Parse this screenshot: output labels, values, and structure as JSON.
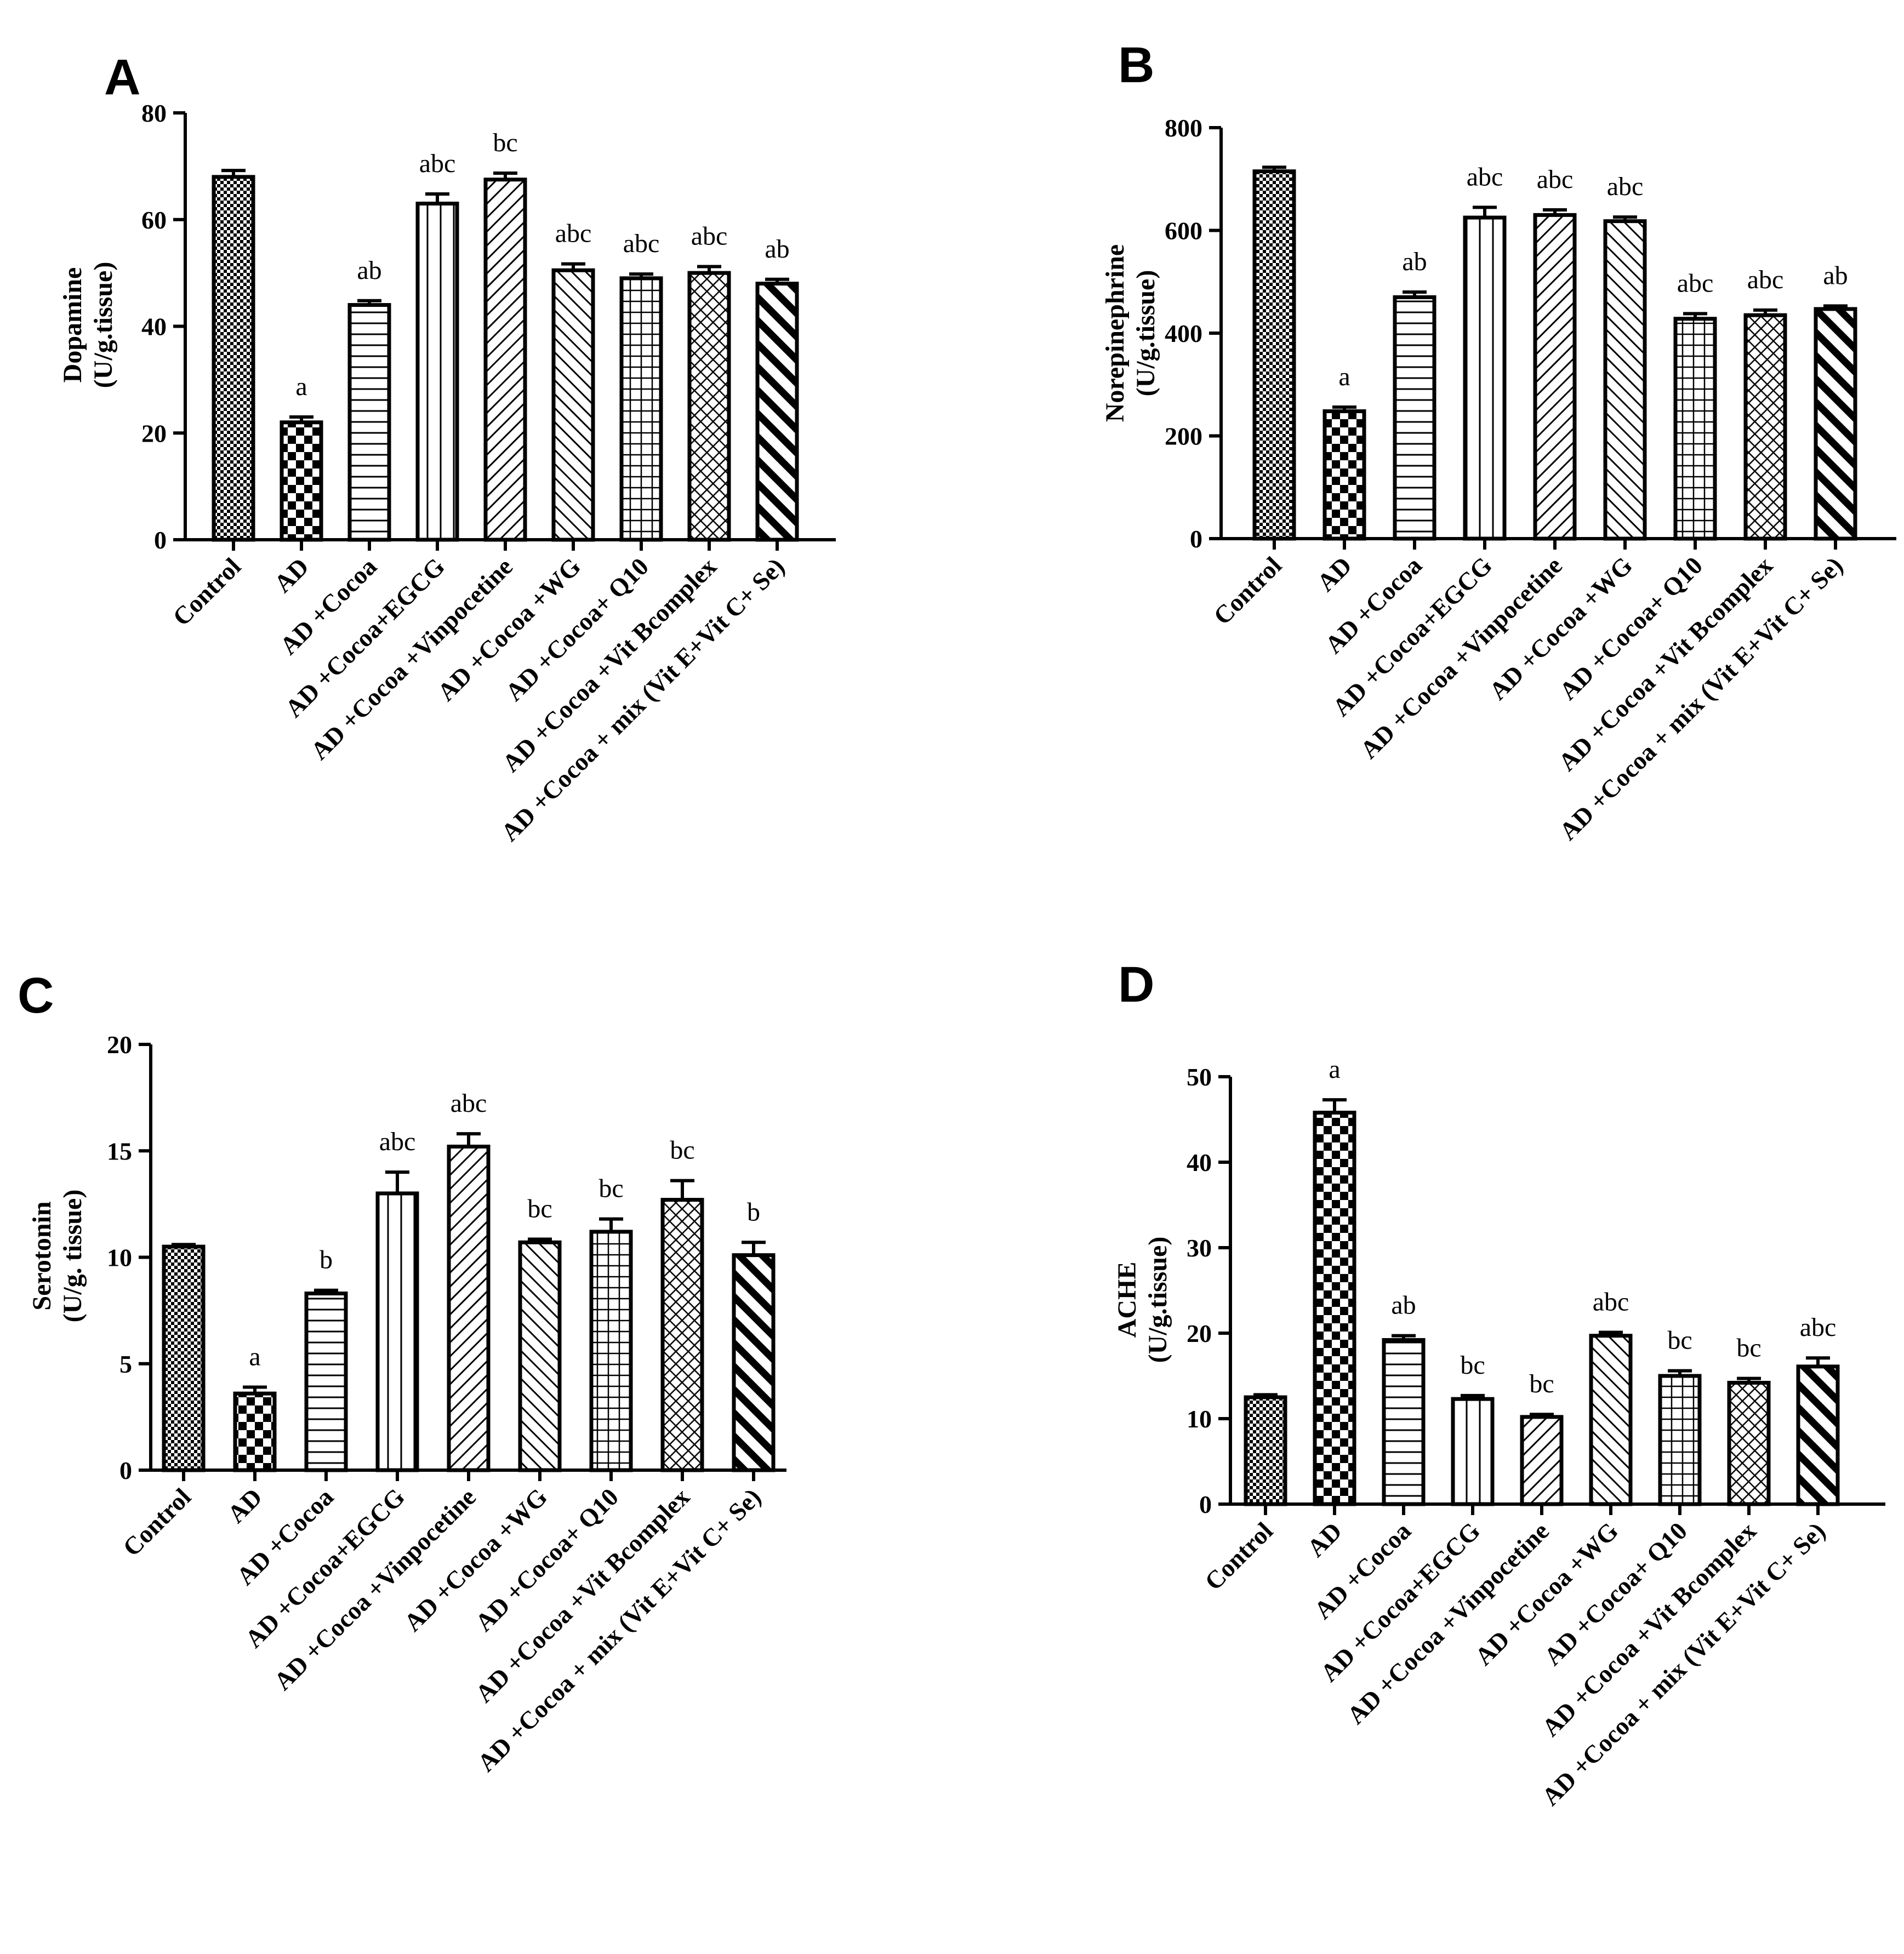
{
  "figure": {
    "categories": [
      "Control",
      "AD",
      "AD +Cocoa",
      "AD +Cocoa+EGCG",
      "AD +Cocoa +Vinpocetine",
      "AD +Cocoa +WG",
      "AD +Cocoa+ Q10",
      "AD +Cocoa +Vit Bcomplex",
      "AD +Cocoa + mix (Vit E+Vit C+ Se)"
    ],
    "fill_patterns": [
      "checker-fine",
      "checker-coarse",
      "horizontal",
      "vertical",
      "diag-up",
      "diag-down",
      "grid",
      "diamond",
      "diag-down-bold"
    ]
  },
  "chart_data": [
    {
      "type": "bar",
      "panel": "A",
      "ylabel": [
        "Dopamine",
        "(U/g.tissue)"
      ],
      "ylim": [
        0,
        80
      ],
      "yticks": [
        0,
        20,
        40,
        60,
        80
      ],
      "values": [
        68,
        22,
        44,
        63,
        67.5,
        50.5,
        49,
        50,
        48
      ],
      "errors": [
        1.2,
        1.0,
        0.8,
        1.8,
        1.2,
        1.2,
        0.8,
        1.2,
        0.8
      ],
      "significance": [
        "",
        "a",
        "ab",
        "abc",
        "bc",
        "abc",
        "abc",
        "abc",
        "ab"
      ]
    },
    {
      "type": "bar",
      "panel": "B",
      "ylabel": [
        "Norepinephrine",
        "(U/g.tissue)"
      ],
      "ylim": [
        0,
        800
      ],
      "yticks": [
        0,
        200,
        400,
        600,
        800
      ],
      "values": [
        715,
        248,
        470,
        625,
        630,
        618,
        428,
        435,
        447
      ],
      "errors": [
        8,
        8,
        10,
        20,
        10,
        8,
        10,
        10,
        6
      ],
      "significance": [
        "",
        "a",
        "ab",
        "abc",
        "abc",
        "abc",
        "abc",
        "abc",
        "ab"
      ]
    },
    {
      "type": "bar",
      "panel": "C",
      "ylabel": [
        "Serotonin",
        "(U/g. tissue)"
      ],
      "ylim": [
        0,
        20
      ],
      "yticks": [
        0,
        5,
        10,
        15,
        20
      ],
      "values": [
        10.5,
        3.6,
        8.3,
        13.0,
        15.2,
        10.7,
        11.2,
        12.7,
        10.1
      ],
      "errors": [
        0.1,
        0.3,
        0.15,
        1.0,
        0.6,
        0.15,
        0.6,
        0.9,
        0.6
      ],
      "significance": [
        "",
        "a",
        "b",
        "abc",
        "abc",
        "bc",
        "bc",
        "bc",
        "b"
      ]
    },
    {
      "type": "bar",
      "panel": "D",
      "ylabel": [
        "ACHE",
        "(U/g.tissue)"
      ],
      "ylim": [
        0,
        50
      ],
      "yticks": [
        0,
        10,
        20,
        30,
        40,
        50
      ],
      "values": [
        12.5,
        45.8,
        19.2,
        12.3,
        10.2,
        19.7,
        15.0,
        14.2,
        16.1
      ],
      "errors": [
        0.3,
        1.5,
        0.5,
        0.4,
        0.3,
        0.4,
        0.6,
        0.5,
        1.0
      ],
      "significance": [
        "",
        "a",
        "ab",
        "bc",
        "bc",
        "abc",
        "bc",
        "bc",
        "abc"
      ]
    }
  ]
}
